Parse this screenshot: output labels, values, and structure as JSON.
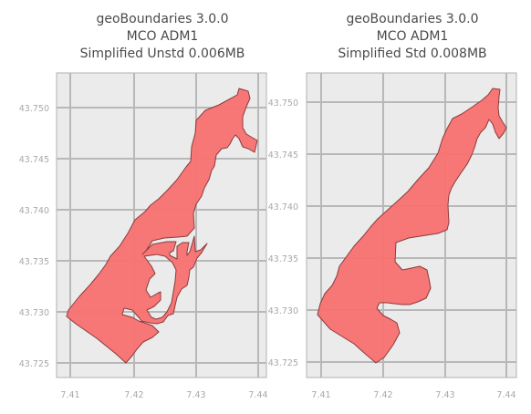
{
  "panels": [
    {
      "title_lines": [
        "geoBoundaries 3.0.0",
        "MCO ADM1",
        "Simplified Unstd 0.006MB"
      ],
      "x_ticks": [
        "7.41",
        "7.42",
        "7.43",
        "7.44"
      ],
      "y_ticks": [
        "43.750",
        "43.745",
        "43.740",
        "43.735",
        "43.730",
        "43.725"
      ]
    },
    {
      "title_lines": [
        "geoBoundaries 3.0.0",
        "MCO ADM1",
        "Simplified Std 0.008MB"
      ],
      "x_ticks": [
        "7.41",
        "7.42",
        "7.43",
        "7.44"
      ],
      "y_ticks": [
        "43.750",
        "43.745",
        "43.740",
        "43.735",
        "43.730",
        "43.725"
      ]
    }
  ],
  "colors": {
    "background": "#ebebeb",
    "grid": "#b8b8b8",
    "fill": "#f87171",
    "stroke": "#8b3a3a",
    "tick_text": "#a8a8a8",
    "title_text": "#4a4a4a"
  }
}
